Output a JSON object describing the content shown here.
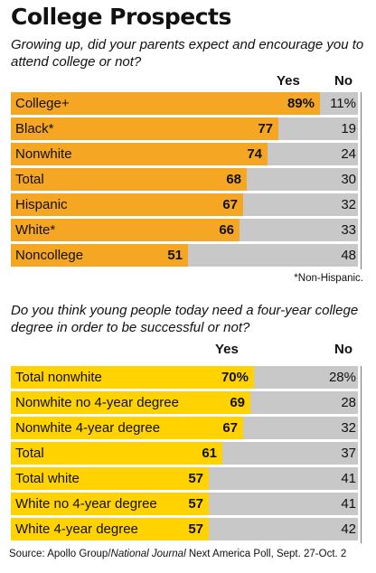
{
  "title": "College Prospects",
  "source_prefix": "Source: Apollo Group/",
  "source_italic": "National Journal",
  "source_suffix": " Next America Poll, Sept. 27-Oct. 2",
  "chart_data": [
    {
      "type": "bar",
      "question": "Growing up, did your parents expect and encourage you to attend college or not?",
      "yes_label": "Yes",
      "no_label": "No",
      "note": "*Non-Hispanic.",
      "bar_color": "#f5a623",
      "track_color": "#c8c8c8",
      "categories": [
        "College+",
        "Black*",
        "Nonwhite",
        "Total",
        "Hispanic",
        "White*",
        "Noncollege"
      ],
      "series": [
        {
          "name": "Yes",
          "values": [
            89,
            77,
            74,
            68,
            67,
            66,
            51
          ],
          "display": [
            "89%",
            "77",
            "74",
            "68",
            "67",
            "66",
            "51"
          ]
        },
        {
          "name": "No",
          "values": [
            11,
            19,
            24,
            30,
            32,
            33,
            48
          ],
          "display": [
            "11%",
            "19",
            "24",
            "30",
            "32",
            "33",
            "48"
          ]
        }
      ],
      "xlim": [
        0,
        100
      ]
    },
    {
      "type": "bar",
      "question": "Do you think young people today need a four-year college degree in order to be successful or not?",
      "yes_label": "Yes",
      "no_label": "No",
      "bar_color": "#ffd200",
      "track_color": "#c8c8c8",
      "categories": [
        "Total nonwhite",
        "Nonwhite no 4-year degree",
        "Nonwhite 4-year degree",
        "Total",
        "Total white",
        "White no 4-year degree",
        "White 4-year degree"
      ],
      "series": [
        {
          "name": "Yes",
          "values": [
            70,
            69,
            67,
            61,
            57,
            57,
            57
          ],
          "display": [
            "70%",
            "69",
            "67",
            "61",
            "57",
            "57",
            "57"
          ]
        },
        {
          "name": "No",
          "values": [
            28,
            28,
            32,
            37,
            41,
            41,
            42
          ],
          "display": [
            "28%",
            "28",
            "32",
            "37",
            "41",
            "41",
            "42"
          ]
        }
      ],
      "xlim": [
        0,
        100
      ]
    }
  ]
}
